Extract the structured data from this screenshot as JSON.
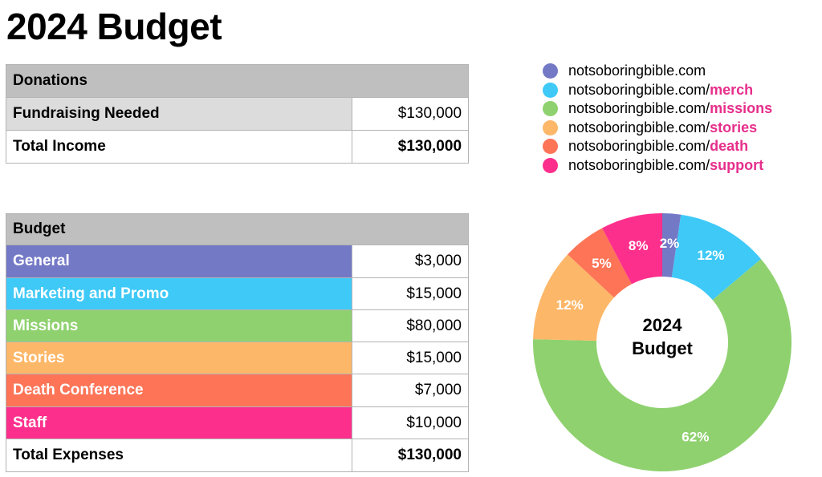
{
  "title": "2024 Budget",
  "donations": {
    "header": "Donations",
    "rows": [
      {
        "label": "Fundraising Needed",
        "amount": "$130,000"
      },
      {
        "label": "Total Income",
        "amount": "$130,000"
      }
    ]
  },
  "budget": {
    "header": "Budget",
    "rows": [
      {
        "label": "General",
        "amount": "$3,000"
      },
      {
        "label": "Marketing and Promo",
        "amount": "$15,000"
      },
      {
        "label": "Missions",
        "amount": "$80,000"
      },
      {
        "label": "Stories",
        "amount": "$15,000"
      },
      {
        "label": "Death Conference",
        "amount": "$7,000"
      },
      {
        "label": "Staff",
        "amount": "$10,000"
      }
    ],
    "total": {
      "label": "Total Expenses",
      "amount": "$130,000"
    }
  },
  "legend": [
    {
      "base": "notsoboringbible.com",
      "slug": ""
    },
    {
      "base": "notsoboringbible.com/",
      "slug": "merch"
    },
    {
      "base": "notsoboringbible.com/",
      "slug": "missions"
    },
    {
      "base": "notsoboringbible.com/",
      "slug": "stories"
    },
    {
      "base": "notsoboringbible.com/",
      "slug": "death"
    },
    {
      "base": "notsoboringbible.com/",
      "slug": "support"
    }
  ],
  "colors": {
    "general": "#7479c6",
    "marketing": "#3fc9f7",
    "missions": "#8fd16f",
    "stories": "#fdb769",
    "death": "#fd7457",
    "staff": "#fd2f8c",
    "slug_text": "#e62e8b"
  },
  "chart_data": {
    "type": "pie",
    "variant": "donut",
    "center_label": [
      "2024",
      "Budget"
    ],
    "slices": [
      {
        "name": "General",
        "value": 3000,
        "label": "2%"
      },
      {
        "name": "Marketing and Promo",
        "value": 15000,
        "label": "12%"
      },
      {
        "name": "Missions",
        "value": 80000,
        "label": "62%"
      },
      {
        "name": "Stories",
        "value": 15000,
        "label": "12%"
      },
      {
        "name": "Death Conference",
        "value": 7000,
        "label": "5%"
      },
      {
        "name": "Staff",
        "value": 10000,
        "label": "8%"
      }
    ]
  }
}
